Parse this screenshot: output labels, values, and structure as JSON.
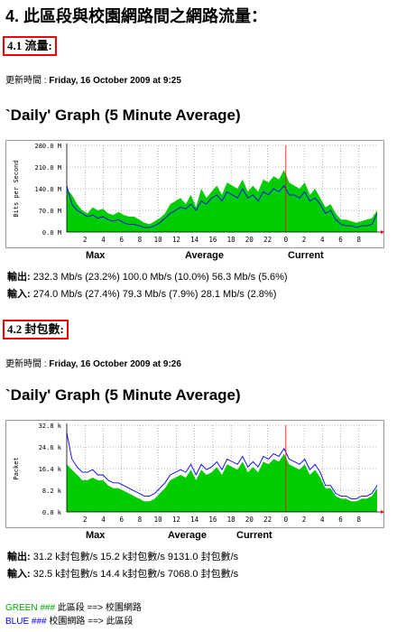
{
  "heading": "4. 此區段與校園網路間之網路流量：",
  "colors": {
    "area": "#00cc00",
    "line": "#0000ff",
    "frame": "#999999",
    "grid": "#7f7f7f",
    "now": "#ff0000",
    "bg": "#f5f5f5"
  },
  "sections": [
    {
      "title": "4.1 流量:",
      "updated_label": "更新時間 :",
      "updated_value": "Friday, 16 October 2009 at 9:25",
      "graph_title": "`Daily' Graph (5 Minute Average)",
      "legend": {
        "max": "Max",
        "average": "Average",
        "current": "Current"
      },
      "out_label": "輸出:",
      "out_values": "232.3 Mb/s (23.2%) 100.0 Mb/s (10.0%) 56.3 Mb/s (5.6%)",
      "in_label": "輸入:",
      "in_values": "274.0 Mb/s (27.4%) 79.3 Mb/s (7.9%)     28.1 Mb/s (2.8%)"
    },
    {
      "title": "4.2 封包數:",
      "updated_label": "更新時間 :",
      "updated_value": "Friday, 16 October 2009 at 9:26",
      "graph_title": "`Daily' Graph (5 Minute Average)",
      "legend": {
        "max": "Max",
        "average": "Average",
        "current": "Current"
      },
      "out_label": "輸出:",
      "out_values": "31.2 k封包數/s 15.2 k封包數/s 9131.0 封包數/s",
      "in_label": "輸入:",
      "in_values": "32.5 k封包數/s 14.4 k封包數/s 7068.0 封包數/s"
    }
  ],
  "notes": [
    {
      "color_word": "GREEN",
      "hashes": "###",
      "text": "此區段 ==> 校園網路",
      "color": "#00aa00"
    },
    {
      "color_word": "BLUE",
      "hashes": "###",
      "text": "校園網路 ==> 此區段",
      "color": "#0000ff"
    }
  ],
  "chart_data": [
    {
      "type": "area",
      "title": "",
      "ylabel": "Bits per Second",
      "y_ticks": [
        "0.0 M",
        "70.0 M",
        "140.0 M",
        "210.0 M",
        "280.0 M"
      ],
      "ylim": [
        0,
        280
      ],
      "x_ticks": [
        "2",
        "4",
        "6",
        "8",
        "10",
        "12",
        "14",
        "16",
        "18",
        "20",
        "22",
        "0",
        "2",
        "4",
        "6",
        "8"
      ],
      "grid": true,
      "series": [
        {
          "name": "GREEN",
          "values": [
            140,
            120,
            90,
            70,
            60,
            80,
            70,
            75,
            60,
            55,
            65,
            55,
            50,
            50,
            40,
            30,
            25,
            35,
            45,
            60,
            90,
            100,
            110,
            90,
            120,
            80,
            140,
            110,
            130,
            150,
            120,
            160,
            150,
            140,
            170,
            130,
            150,
            130,
            170,
            160,
            180,
            170,
            200,
            160,
            150,
            140,
            160,
            120,
            140,
            110,
            80,
            90,
            60,
            40,
            40,
            35,
            30,
            35,
            40,
            45,
            70
          ]
        },
        {
          "name": "BLUE",
          "values": [
            150,
            90,
            70,
            60,
            50,
            55,
            45,
            50,
            40,
            35,
            40,
            30,
            25,
            25,
            20,
            15,
            15,
            20,
            30,
            45,
            60,
            70,
            80,
            75,
            90,
            70,
            100,
            90,
            110,
            120,
            100,
            130,
            120,
            110,
            140,
            110,
            120,
            100,
            130,
            120,
            140,
            130,
            150,
            120,
            120,
            110,
            130,
            100,
            110,
            90,
            60,
            70,
            40,
            25,
            20,
            20,
            15,
            20,
            20,
            25,
            60
          ]
        }
      ]
    },
    {
      "type": "area",
      "title": "",
      "ylabel": "Packet",
      "y_ticks": [
        "0.0 k",
        "8.2 k",
        "16.4 k",
        "24.6 k",
        "32.8 k"
      ],
      "ylim": [
        0,
        32.8
      ],
      "x_ticks": [
        "2",
        "4",
        "6",
        "8",
        "10",
        "12",
        "14",
        "16",
        "18",
        "20",
        "22",
        "0",
        "2",
        "4",
        "6",
        "8"
      ],
      "grid": true,
      "series": [
        {
          "name": "GREEN",
          "values": [
            18,
            16,
            14,
            12,
            12,
            13,
            12,
            12,
            10,
            9,
            9,
            8,
            7,
            6,
            5,
            4,
            4,
            5,
            7,
            9,
            12,
            13,
            14,
            13,
            16,
            12,
            16,
            14,
            15,
            17,
            14,
            18,
            17,
            16,
            19,
            15,
            17,
            15,
            19,
            18,
            20,
            19,
            22,
            18,
            17,
            16,
            18,
            14,
            16,
            13,
            9,
            9,
            6,
            5,
            5,
            4,
            4,
            5,
            5,
            6,
            9
          ]
        },
        {
          "name": "BLUE",
          "values": [
            30,
            20,
            17,
            15,
            15,
            16,
            14,
            14,
            12,
            11,
            11,
            10,
            9,
            8,
            7,
            6,
            6,
            7,
            9,
            11,
            14,
            15,
            16,
            15,
            18,
            14,
            18,
            16,
            17,
            19,
            16,
            20,
            19,
            18,
            21,
            17,
            19,
            17,
            21,
            20,
            22,
            21,
            24,
            20,
            19,
            18,
            20,
            16,
            18,
            15,
            10,
            10,
            7,
            6,
            6,
            5,
            5,
            6,
            6,
            7,
            10
          ]
        }
      ]
    }
  ]
}
